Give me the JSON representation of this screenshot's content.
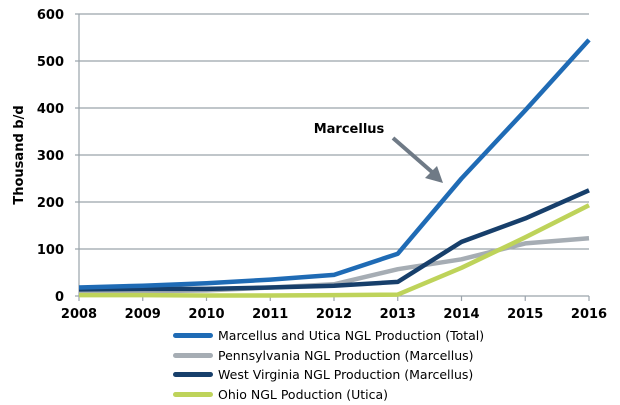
{
  "chart_data": {
    "type": "line",
    "title": "",
    "xlabel": "",
    "ylabel": "Thousand b/d",
    "x": [
      "2008",
      "2009",
      "2010",
      "2011",
      "2012",
      "2013",
      "2014",
      "2015",
      "2016"
    ],
    "ylim": [
      0,
      600
    ],
    "yticks": [
      "0",
      "100",
      "200",
      "300",
      "400",
      "500",
      "600"
    ],
    "grid": true,
    "legend_position": "bottom",
    "series": [
      {
        "name": "Marcellus and Utica NGL Production (Total)",
        "color": "#1f6bb5",
        "values": [
          18,
          22,
          27,
          35,
          45,
          90,
          250,
          395,
          545
        ]
      },
      {
        "name": "Pennsylvania NGL Production (Marcellus)",
        "color": "#a6adb4",
        "values": [
          8,
          10,
          12,
          18,
          25,
          57,
          78,
          112,
          123
        ]
      },
      {
        "name": "West Virginia NGL Production (Marcellus)",
        "color": "#173f6b",
        "values": [
          14,
          15,
          15,
          18,
          22,
          30,
          115,
          165,
          225
        ]
      },
      {
        "name": "Ohio NGL Poduction (Utica)",
        "color": "#bed35a",
        "values": [
          2,
          2,
          1,
          1,
          2,
          3,
          60,
          125,
          193
        ]
      }
    ],
    "annotations": [
      {
        "text": "Marcellus",
        "points_to": {
          "x": "2014",
          "series": "Marcellus and Utica NGL Production (Total)"
        },
        "arrow_color": "#6f7a86"
      }
    ]
  }
}
